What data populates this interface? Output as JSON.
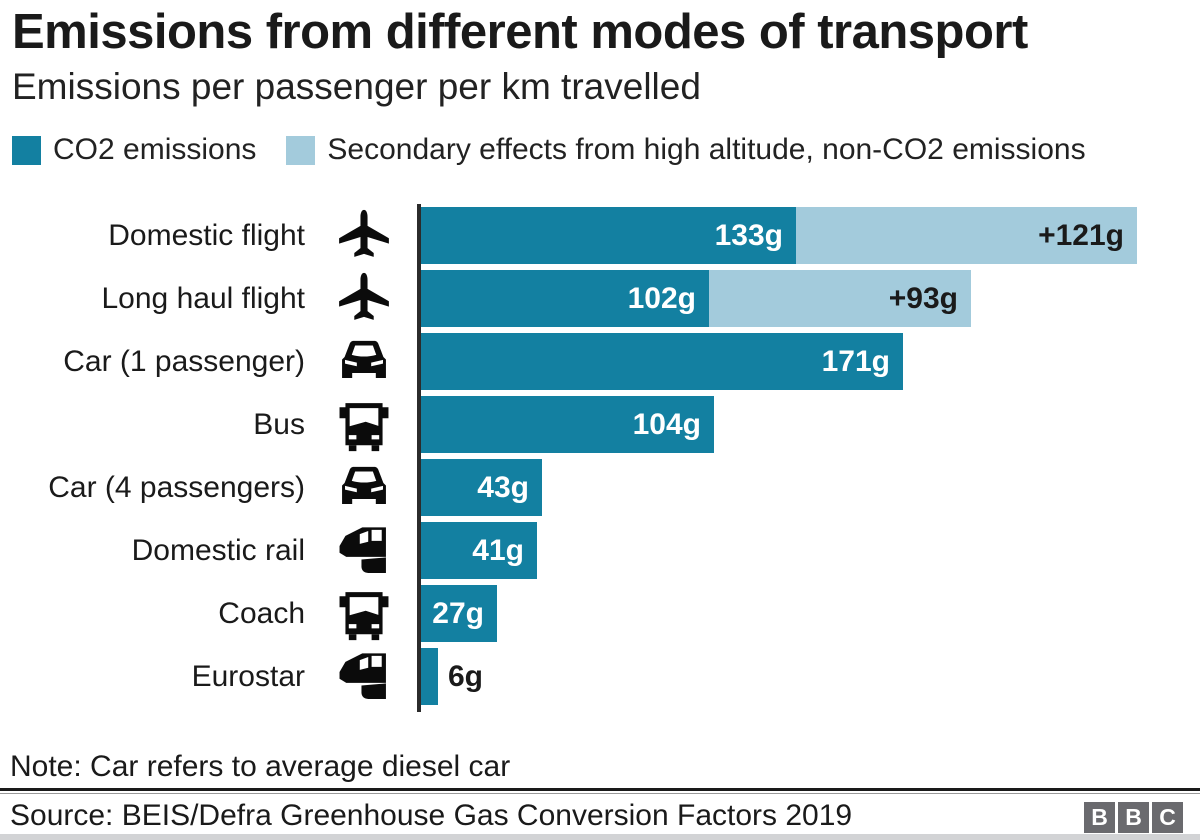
{
  "header": {
    "title": "Emissions from different modes of transport",
    "subtitle": "Emissions per passenger per km travelled"
  },
  "legend": [
    {
      "label": "CO2 emissions",
      "color": "#1380a1"
    },
    {
      "label": "Secondary effects from high altitude, non-CO2 emissions",
      "color": "#a3cbdc"
    }
  ],
  "chart_data": {
    "type": "bar",
    "orientation": "horizontal",
    "unit": "g per passenger per km",
    "title": "Emissions from different modes of transport",
    "xlabel": "",
    "ylabel": "",
    "xlim": [
      0,
      260
    ],
    "grid": false,
    "legend_position": "top",
    "colors": {
      "co2": "#1380a1",
      "secondary": "#a3cbdc"
    },
    "series_names": [
      "CO2 emissions",
      "Secondary effects from high altitude, non-CO2 emissions"
    ],
    "rows": [
      {
        "label": "Domestic flight",
        "icon": "plane-icon",
        "co2": 133,
        "co2_label": "133g",
        "secondary": 121,
        "secondary_label": "+121g"
      },
      {
        "label": "Long haul flight",
        "icon": "plane-icon",
        "co2": 102,
        "co2_label": "102g",
        "secondary": 93,
        "secondary_label": "+93g"
      },
      {
        "label": "Car (1 passenger)",
        "icon": "car-icon",
        "co2": 171,
        "co2_label": "171g",
        "secondary": 0,
        "secondary_label": ""
      },
      {
        "label": "Bus",
        "icon": "bus-icon",
        "co2": 104,
        "co2_label": "104g",
        "secondary": 0,
        "secondary_label": ""
      },
      {
        "label": "Car (4 passengers)",
        "icon": "car-icon",
        "co2": 43,
        "co2_label": "43g",
        "secondary": 0,
        "secondary_label": ""
      },
      {
        "label": "Domestic rail",
        "icon": "train-icon",
        "co2": 41,
        "co2_label": "41g",
        "secondary": 0,
        "secondary_label": ""
      },
      {
        "label": "Coach",
        "icon": "bus-icon",
        "co2": 27,
        "co2_label": "27g",
        "secondary": 0,
        "secondary_label": ""
      },
      {
        "label": "Eurostar",
        "icon": "train-icon",
        "co2": 6,
        "co2_label": "6g",
        "secondary": 0,
        "secondary_label": ""
      }
    ]
  },
  "footer": {
    "note": "Note: Car refers to average diesel car",
    "source": "Source: BEIS/Defra Greenhouse Gas Conversion Factors 2019",
    "logo_letters": [
      "B",
      "B",
      "C"
    ]
  }
}
